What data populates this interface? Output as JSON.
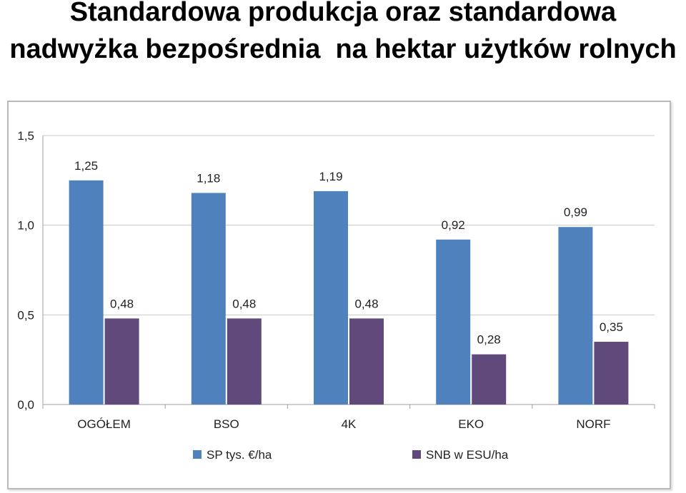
{
  "title": {
    "line1": "Standardowa produkcja oraz standardowa",
    "line2": "nadwyżka bezpośrednia  na hektar użytków rolnych"
  },
  "chart_data": {
    "type": "bar",
    "categories": [
      "OGÓŁEM",
      "BSO",
      "4K",
      "EKO",
      "NORF"
    ],
    "series": [
      {
        "name": "SP tys. €/ha",
        "values": [
          1.25,
          1.18,
          1.19,
          0.92,
          0.99
        ],
        "color": "#4f81bd",
        "labels": [
          "1,25",
          "1,18",
          "1,19",
          "0,92",
          "0,99"
        ]
      },
      {
        "name": "SNB w ESU/ha",
        "values": [
          0.48,
          0.48,
          0.48,
          0.28,
          0.35
        ],
        "color": "#604a7b",
        "labels": [
          "0,48",
          "0,48",
          "0,48",
          "0,28",
          "0,35"
        ]
      }
    ],
    "ylim": [
      0,
      1.5
    ],
    "yticks": [
      0,
      0.5,
      1.0,
      1.5
    ],
    "ytick_labels": [
      "0,0",
      "0,5",
      "1,0",
      "1,5"
    ],
    "grid": true,
    "legend_position": "bottom",
    "xlabel": "",
    "ylabel": ""
  }
}
